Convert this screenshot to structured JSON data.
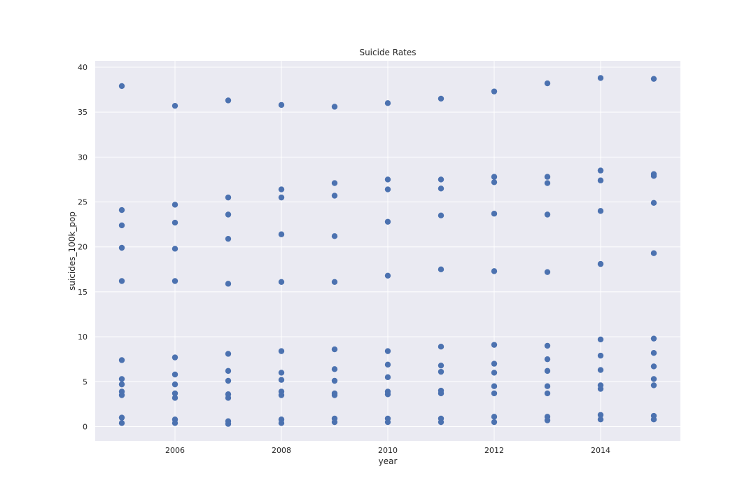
{
  "chart_data": {
    "type": "scatter",
    "title": "Suicide Rates",
    "xlabel": "year",
    "ylabel": "suicides_100k_pop",
    "xlim": [
      2004.5,
      2015.5
    ],
    "ylim": [
      -1.6,
      40.7
    ],
    "xticks": [
      2006,
      2008,
      2010,
      2012,
      2014
    ],
    "yticks": [
      0,
      5,
      10,
      15,
      20,
      25,
      30,
      35,
      40
    ],
    "grid": true,
    "colors": {
      "background": "#eaeaf2",
      "grid": "#ffffff",
      "marker": "#4c72b0",
      "text": "#262626"
    },
    "points": [
      {
        "x": 2005,
        "y": 37.9
      },
      {
        "x": 2005,
        "y": 24.1
      },
      {
        "x": 2005,
        "y": 22.4
      },
      {
        "x": 2005,
        "y": 19.9
      },
      {
        "x": 2005,
        "y": 16.2
      },
      {
        "x": 2005,
        "y": 7.4
      },
      {
        "x": 2005,
        "y": 5.3
      },
      {
        "x": 2005,
        "y": 4.7
      },
      {
        "x": 2005,
        "y": 3.9
      },
      {
        "x": 2005,
        "y": 3.5
      },
      {
        "x": 2005,
        "y": 1.0
      },
      {
        "x": 2005,
        "y": 0.4
      },
      {
        "x": 2006,
        "y": 35.7
      },
      {
        "x": 2006,
        "y": 24.7
      },
      {
        "x": 2006,
        "y": 22.7
      },
      {
        "x": 2006,
        "y": 19.8
      },
      {
        "x": 2006,
        "y": 16.2
      },
      {
        "x": 2006,
        "y": 7.7
      },
      {
        "x": 2006,
        "y": 5.8
      },
      {
        "x": 2006,
        "y": 4.7
      },
      {
        "x": 2006,
        "y": 3.7
      },
      {
        "x": 2006,
        "y": 3.2
      },
      {
        "x": 2006,
        "y": 0.8
      },
      {
        "x": 2006,
        "y": 0.4
      },
      {
        "x": 2007,
        "y": 36.3
      },
      {
        "x": 2007,
        "y": 25.5
      },
      {
        "x": 2007,
        "y": 23.6
      },
      {
        "x": 2007,
        "y": 20.9
      },
      {
        "x": 2007,
        "y": 15.9
      },
      {
        "x": 2007,
        "y": 8.1
      },
      {
        "x": 2007,
        "y": 6.2
      },
      {
        "x": 2007,
        "y": 5.1
      },
      {
        "x": 2007,
        "y": 3.6
      },
      {
        "x": 2007,
        "y": 3.2
      },
      {
        "x": 2007,
        "y": 0.6
      },
      {
        "x": 2007,
        "y": 0.3
      },
      {
        "x": 2008,
        "y": 35.8
      },
      {
        "x": 2008,
        "y": 26.4
      },
      {
        "x": 2008,
        "y": 25.5
      },
      {
        "x": 2008,
        "y": 21.4
      },
      {
        "x": 2008,
        "y": 16.1
      },
      {
        "x": 2008,
        "y": 8.4
      },
      {
        "x": 2008,
        "y": 6.0
      },
      {
        "x": 2008,
        "y": 5.2
      },
      {
        "x": 2008,
        "y": 3.9
      },
      {
        "x": 2008,
        "y": 3.5
      },
      {
        "x": 2008,
        "y": 0.8
      },
      {
        "x": 2008,
        "y": 0.4
      },
      {
        "x": 2009,
        "y": 35.6
      },
      {
        "x": 2009,
        "y": 27.1
      },
      {
        "x": 2009,
        "y": 25.7
      },
      {
        "x": 2009,
        "y": 21.2
      },
      {
        "x": 2009,
        "y": 16.1
      },
      {
        "x": 2009,
        "y": 8.6
      },
      {
        "x": 2009,
        "y": 6.4
      },
      {
        "x": 2009,
        "y": 5.1
      },
      {
        "x": 2009,
        "y": 3.7
      },
      {
        "x": 2009,
        "y": 3.5
      },
      {
        "x": 2009,
        "y": 0.9
      },
      {
        "x": 2009,
        "y": 0.5
      },
      {
        "x": 2010,
        "y": 36.0
      },
      {
        "x": 2010,
        "y": 27.5
      },
      {
        "x": 2010,
        "y": 26.4
      },
      {
        "x": 2010,
        "y": 22.8
      },
      {
        "x": 2010,
        "y": 16.8
      },
      {
        "x": 2010,
        "y": 8.4
      },
      {
        "x": 2010,
        "y": 6.9
      },
      {
        "x": 2010,
        "y": 5.5
      },
      {
        "x": 2010,
        "y": 3.9
      },
      {
        "x": 2010,
        "y": 3.6
      },
      {
        "x": 2010,
        "y": 0.9
      },
      {
        "x": 2010,
        "y": 0.5
      },
      {
        "x": 2011,
        "y": 36.5
      },
      {
        "x": 2011,
        "y": 27.5
      },
      {
        "x": 2011,
        "y": 26.5
      },
      {
        "x": 2011,
        "y": 23.5
      },
      {
        "x": 2011,
        "y": 17.5
      },
      {
        "x": 2011,
        "y": 8.9
      },
      {
        "x": 2011,
        "y": 6.8
      },
      {
        "x": 2011,
        "y": 6.1
      },
      {
        "x": 2011,
        "y": 4.0
      },
      {
        "x": 2011,
        "y": 3.7
      },
      {
        "x": 2011,
        "y": 0.9
      },
      {
        "x": 2011,
        "y": 0.5
      },
      {
        "x": 2012,
        "y": 37.3
      },
      {
        "x": 2012,
        "y": 27.8
      },
      {
        "x": 2012,
        "y": 27.2
      },
      {
        "x": 2012,
        "y": 23.7
      },
      {
        "x": 2012,
        "y": 17.3
      },
      {
        "x": 2012,
        "y": 9.1
      },
      {
        "x": 2012,
        "y": 7.0
      },
      {
        "x": 2012,
        "y": 6.0
      },
      {
        "x": 2012,
        "y": 4.5
      },
      {
        "x": 2012,
        "y": 3.7
      },
      {
        "x": 2012,
        "y": 1.1
      },
      {
        "x": 2012,
        "y": 0.5
      },
      {
        "x": 2013,
        "y": 38.2
      },
      {
        "x": 2013,
        "y": 27.8
      },
      {
        "x": 2013,
        "y": 27.1
      },
      {
        "x": 2013,
        "y": 23.6
      },
      {
        "x": 2013,
        "y": 17.2
      },
      {
        "x": 2013,
        "y": 9.0
      },
      {
        "x": 2013,
        "y": 7.5
      },
      {
        "x": 2013,
        "y": 6.2
      },
      {
        "x": 2013,
        "y": 4.5
      },
      {
        "x": 2013,
        "y": 3.7
      },
      {
        "x": 2013,
        "y": 1.1
      },
      {
        "x": 2013,
        "y": 0.7
      },
      {
        "x": 2014,
        "y": 38.8
      },
      {
        "x": 2014,
        "y": 28.5
      },
      {
        "x": 2014,
        "y": 27.4
      },
      {
        "x": 2014,
        "y": 24.0
      },
      {
        "x": 2014,
        "y": 18.1
      },
      {
        "x": 2014,
        "y": 9.7
      },
      {
        "x": 2014,
        "y": 7.9
      },
      {
        "x": 2014,
        "y": 6.3
      },
      {
        "x": 2014,
        "y": 4.6
      },
      {
        "x": 2014,
        "y": 4.2
      },
      {
        "x": 2014,
        "y": 1.3
      },
      {
        "x": 2014,
        "y": 0.8
      },
      {
        "x": 2015,
        "y": 38.7
      },
      {
        "x": 2015,
        "y": 28.1
      },
      {
        "x": 2015,
        "y": 27.9
      },
      {
        "x": 2015,
        "y": 24.9
      },
      {
        "x": 2015,
        "y": 19.3
      },
      {
        "x": 2015,
        "y": 9.8
      },
      {
        "x": 2015,
        "y": 8.2
      },
      {
        "x": 2015,
        "y": 6.7
      },
      {
        "x": 2015,
        "y": 5.3
      },
      {
        "x": 2015,
        "y": 4.6
      },
      {
        "x": 2015,
        "y": 1.2
      },
      {
        "x": 2015,
        "y": 0.8
      }
    ]
  }
}
